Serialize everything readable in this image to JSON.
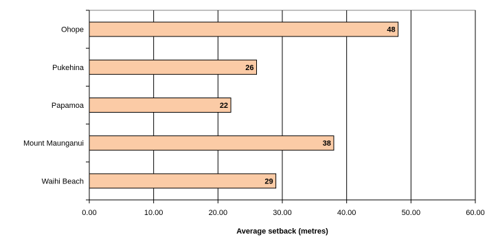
{
  "chart_data": {
    "type": "bar",
    "orientation": "horizontal",
    "categories": [
      "Ohope",
      "Pukehina",
      "Papamoa",
      "Mount Maunganui",
      "Waihi Beach"
    ],
    "values": [
      48,
      26,
      22,
      38,
      29
    ],
    "data_labels": [
      "48",
      "26",
      "22",
      "38",
      "29"
    ],
    "title": "",
    "xlabel": "Average setback (metres)",
    "ylabel": "",
    "xlim": [
      0,
      60
    ],
    "x_ticks": [
      0,
      10,
      20,
      30,
      40,
      50,
      60
    ],
    "x_tick_labels": [
      "0.00",
      "10.00",
      "20.00",
      "30.00",
      "40.00",
      "50.00",
      "60.00"
    ],
    "grid": "vertical",
    "legend": "none",
    "colors": {
      "bar_fill": "#FBCBA6",
      "bar_stroke": "#000000",
      "grid": "#000000",
      "plot_border": "#808080"
    }
  }
}
